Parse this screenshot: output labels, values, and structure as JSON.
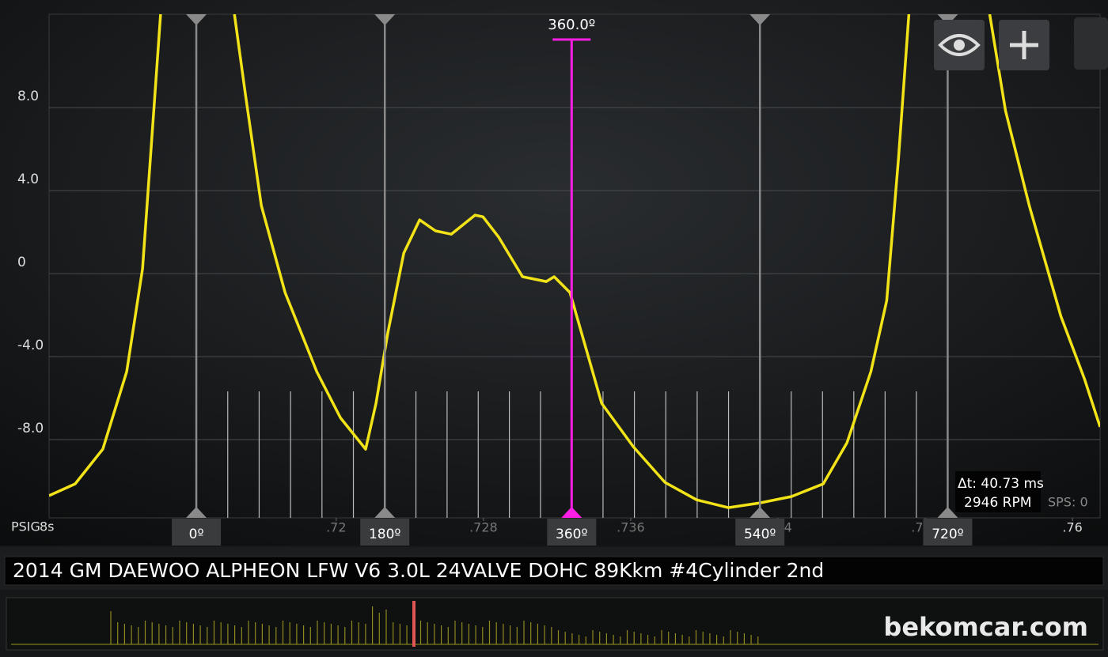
{
  "chart_data": {
    "type": "line",
    "y_label": "PSIG",
    "x_label": "8s",
    "color": "#f2e318",
    "x": [
      0.7044,
      0.70582,
      0.70732,
      0.70862,
      0.70948,
      0.71012,
      0.71046,
      0.71249,
      0.71447,
      0.71507,
      0.71593,
      0.71722,
      0.71894,
      0.72023,
      0.7216,
      0.72216,
      0.72281,
      0.72367,
      0.72453,
      0.72539,
      0.72625,
      0.72754,
      0.72797,
      0.72883,
      0.73012,
      0.73141,
      0.73184,
      0.7327,
      0.73356,
      0.73442,
      0.73614,
      0.73786,
      0.73958,
      0.7413,
      0.74302,
      0.74474,
      0.74646,
      0.74775,
      0.74905,
      0.74991,
      0.75055,
      0.75111,
      0.7533,
      0.7555,
      0.75636,
      0.75765,
      0.75937,
      0.76066,
      0.7615
    ],
    "values": [
      -10.7,
      -10.13,
      -8.46,
      -4.72,
      0.23,
      8.23,
      12.5,
      null,
      12.5,
      8.61,
      3.28,
      -0.91,
      -4.72,
      -6.95,
      -8.46,
      -6.25,
      -2.82,
      0.99,
      2.59,
      2.06,
      1.9,
      2.82,
      2.74,
      1.75,
      -0.15,
      -0.38,
      -0.15,
      -0.91,
      -3.58,
      -6.25,
      -8.34,
      -10.06,
      -10.9,
      -11.28,
      -11.05,
      -10.74,
      -10.13,
      -8.15,
      -4.72,
      -1.3,
      5.56,
      12.5,
      null,
      12.5,
      7.85,
      3.28,
      -2.06,
      -5.1,
      -7.39
    ],
    "xlim": [
      0.7044,
      0.7615
    ],
    "ylim": [
      -11.77,
      12.5
    ],
    "xticks": [
      {
        "value": 0.72,
        "label": ".72"
      },
      {
        "value": 0.728,
        "label": ".728"
      },
      {
        "value": 0.736,
        "label": ".736"
      },
      {
        "value": 0.744,
        "label": ".744"
      },
      {
        "value": 0.752,
        "label": ".752"
      },
      {
        "value": 0.76,
        "label": ".76"
      }
    ],
    "yticks": [
      {
        "value": 8,
        "label": "8.0"
      },
      {
        "value": 4,
        "label": "4.0"
      },
      0,
      {
        "value": -4,
        "label": "-4.0"
      },
      {
        "value": -8,
        "label": "-8.0"
      }
    ],
    "grid": true,
    "cursors": [
      {
        "label": "0º",
        "x": 0.7124
      },
      {
        "label": "180º",
        "x": 0.72264
      },
      {
        "label": "360º",
        "x": 0.73279
      },
      {
        "label": "540º",
        "x": 0.74302
      },
      {
        "label": "720º",
        "x": 0.75322
      }
    ],
    "active_cursor": 2,
    "active_cursor_label": "360.0º",
    "cursor_color": "#8a8a8a",
    "active_color": "#ff1ee6",
    "readouts": {
      "delta_t": "Δt: 40.73 ms",
      "rpm": "2946 RPM",
      "sps": "SPS: 0"
    }
  },
  "header": {
    "title": "2014 GM DAEWOO ALPHEON LFW V6 3.0L 24VALVE DOHC 89Kkm #4Cylinder 2nd"
  },
  "watermark": "bekomcar.com"
}
